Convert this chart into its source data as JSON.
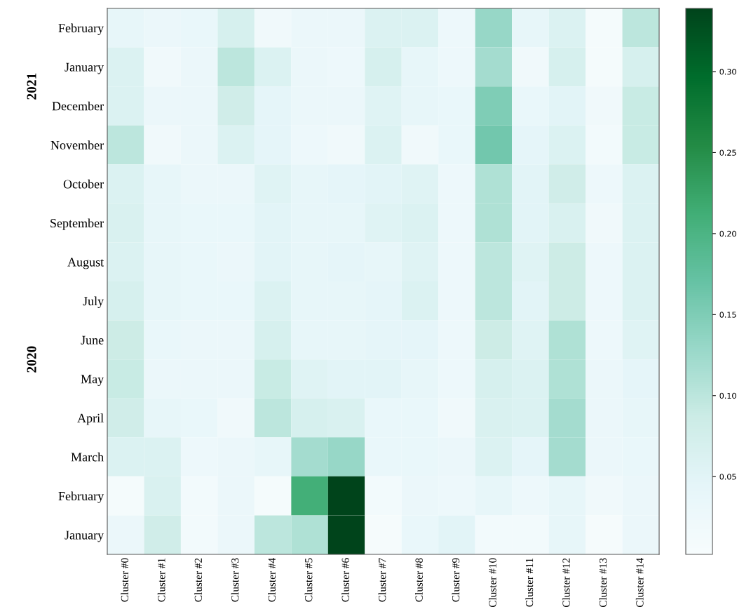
{
  "chart_data": {
    "type": "heatmap",
    "categories": [
      "Cluster #0",
      "Cluster #1",
      "Cluster #2",
      "Cluster #3",
      "Cluster #4",
      "Cluster #5",
      "Cluster #6",
      "Cluster #7",
      "Cluster #8",
      "Cluster #9",
      "Cluster #10",
      "Cluster #11",
      "Cluster #12",
      "Cluster #13",
      "Cluster #14"
    ],
    "y_categories": [
      "February",
      "January",
      "December",
      "November",
      "October",
      "September",
      "August",
      "July",
      "June",
      "May",
      "April",
      "March",
      "February",
      "January"
    ],
    "annotations": [
      "2021",
      "2020"
    ],
    "cells": [
      [
        0.04,
        0.03,
        0.035,
        0.07,
        0.02,
        0.03,
        0.03,
        0.06,
        0.06,
        0.025,
        0.13,
        0.04,
        0.06,
        0.01,
        0.1
      ],
      [
        0.06,
        0.02,
        0.03,
        0.1,
        0.06,
        0.03,
        0.025,
        0.07,
        0.04,
        0.025,
        0.12,
        0.02,
        0.07,
        0.01,
        0.07
      ],
      [
        0.06,
        0.03,
        0.03,
        0.08,
        0.045,
        0.03,
        0.03,
        0.055,
        0.04,
        0.035,
        0.15,
        0.035,
        0.05,
        0.02,
        0.09
      ],
      [
        0.1,
        0.02,
        0.03,
        0.06,
        0.045,
        0.025,
        0.02,
        0.06,
        0.02,
        0.035,
        0.16,
        0.045,
        0.06,
        0.015,
        0.09
      ],
      [
        0.06,
        0.04,
        0.03,
        0.03,
        0.055,
        0.04,
        0.045,
        0.05,
        0.055,
        0.025,
        0.11,
        0.05,
        0.08,
        0.025,
        0.06
      ],
      [
        0.065,
        0.04,
        0.035,
        0.035,
        0.05,
        0.04,
        0.04,
        0.055,
        0.06,
        0.025,
        0.11,
        0.05,
        0.065,
        0.02,
        0.06
      ],
      [
        0.06,
        0.04,
        0.035,
        0.03,
        0.05,
        0.04,
        0.045,
        0.04,
        0.055,
        0.025,
        0.1,
        0.055,
        0.085,
        0.025,
        0.06
      ],
      [
        0.07,
        0.04,
        0.035,
        0.035,
        0.06,
        0.04,
        0.04,
        0.045,
        0.06,
        0.025,
        0.1,
        0.05,
        0.085,
        0.025,
        0.06
      ],
      [
        0.085,
        0.035,
        0.03,
        0.03,
        0.07,
        0.04,
        0.04,
        0.045,
        0.045,
        0.025,
        0.085,
        0.055,
        0.11,
        0.025,
        0.055
      ],
      [
        0.09,
        0.03,
        0.03,
        0.03,
        0.09,
        0.055,
        0.05,
        0.05,
        0.04,
        0.025,
        0.07,
        0.06,
        0.11,
        0.03,
        0.045
      ],
      [
        0.08,
        0.04,
        0.035,
        0.02,
        0.1,
        0.07,
        0.065,
        0.035,
        0.035,
        0.02,
        0.065,
        0.06,
        0.12,
        0.03,
        0.04
      ],
      [
        0.06,
        0.06,
        0.025,
        0.03,
        0.04,
        0.12,
        0.13,
        0.035,
        0.035,
        0.03,
        0.06,
        0.045,
        0.12,
        0.03,
        0.035
      ],
      [
        0.01,
        0.065,
        0.015,
        0.03,
        0.01,
        0.21,
        0.339,
        0.015,
        0.03,
        0.025,
        0.04,
        0.025,
        0.04,
        0.02,
        0.03
      ],
      [
        0.03,
        0.08,
        0.015,
        0.03,
        0.1,
        0.11,
        0.339,
        0.008,
        0.035,
        0.05,
        0.015,
        0.015,
        0.04,
        0.008,
        0.03
      ]
    ],
    "clim": [
      0.002,
      0.339
    ],
    "cticks": [
      0.05,
      {
        "value": 0.1,
        "label": "0.10"
      },
      0.15,
      {
        "value": 0.2,
        "label": "0.20"
      },
      0.25,
      {
        "value": 0.3,
        "label": "0.30"
      }
    ]
  }
}
